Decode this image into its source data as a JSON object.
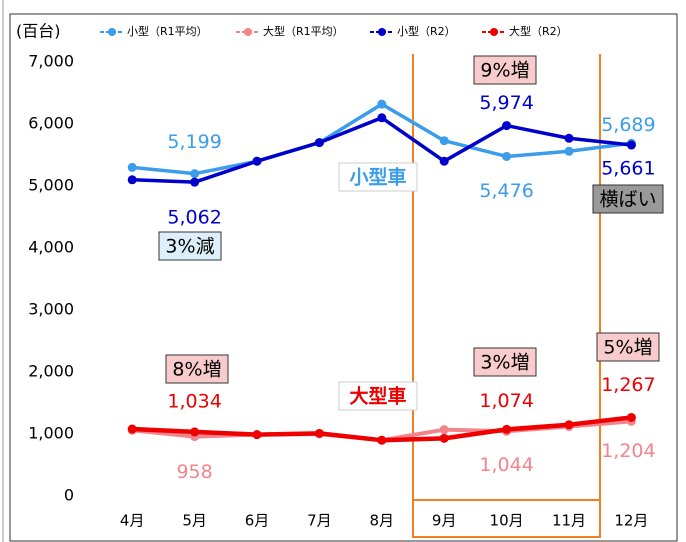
{
  "chart_data": {
    "type": "line",
    "y_label": "(百台)",
    "categories": [
      "4月",
      "5月",
      "6月",
      "7月",
      "8月",
      "9月",
      "10月",
      "11月",
      "12月"
    ],
    "series": [
      {
        "name": "小型（R1平均）",
        "color": "#3b9cec",
        "values": [
          5300,
          5199,
          5400,
          5700,
          6320,
          5730,
          5476,
          5560,
          5689
        ],
        "value_labels": [
          null,
          "5,199",
          null,
          null,
          null,
          null,
          "5,476",
          null,
          "5,689"
        ]
      },
      {
        "name": "大型（R1平均）",
        "color": "#f4848c",
        "values": [
          1060,
          958,
          990,
          1000,
          900,
          1070,
          1044,
          1120,
          1204
        ],
        "value_labels": [
          null,
          "958",
          null,
          null,
          null,
          null,
          "1,044",
          null,
          "1,204"
        ]
      },
      {
        "name": "小型（R2）",
        "color": "#0000cc",
        "values": [
          5100,
          5062,
          5400,
          5700,
          6100,
          5400,
          5974,
          5770,
          5661
        ],
        "value_labels": [
          null,
          "5,062",
          null,
          null,
          null,
          null,
          "5,974",
          null,
          "5,661"
        ]
      },
      {
        "name": "大型（R2）",
        "color": "#ee0000",
        "values": [
          1080,
          1034,
          990,
          1010,
          900,
          930,
          1074,
          1150,
          1267
        ],
        "value_labels": [
          null,
          "1,034",
          null,
          null,
          null,
          null,
          "1,074",
          null,
          "1,267"
        ]
      }
    ],
    "annotations": [
      "9%増",
      "3%減",
      "横ばい",
      "8%増",
      "3%増",
      "5%増",
      "小型車",
      "大型車"
    ],
    "ylim": [
      0,
      7000
    ],
    "yticks": [
      0,
      {
        "value": 1000,
        "label": "1,000"
      },
      {
        "value": 2000,
        "label": "2,000"
      },
      {
        "value": 3000,
        "label": "3,000"
      },
      {
        "value": 4000,
        "label": "4,000"
      },
      {
        "value": 5000,
        "label": "5,000"
      },
      {
        "value": 6000,
        "label": "6,000"
      },
      {
        "value": 7000,
        "label": "7,000"
      }
    ],
    "grid": false,
    "legend": "top"
  }
}
